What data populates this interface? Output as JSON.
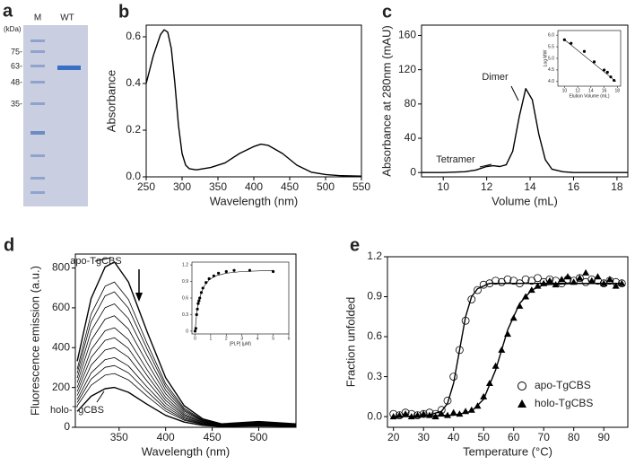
{
  "gel": {
    "panel_label": "a",
    "lanes": [
      "M",
      "WT"
    ],
    "unit": "(kDa)",
    "markers": [
      "75-",
      "63-",
      "48-",
      "35-"
    ]
  },
  "chart_data": [
    {
      "type": "line",
      "panel_label": "b",
      "xlabel": "Wavelength (nm)",
      "ylabel": "Absorbance",
      "x": [
        250,
        260,
        270,
        275,
        280,
        285,
        290,
        295,
        300,
        305,
        310,
        320,
        340,
        360,
        380,
        400,
        410,
        420,
        440,
        460,
        480,
        500,
        520,
        550
      ],
      "series": [
        {
          "color": "#000000",
          "marker": "line",
          "values": [
            0.4,
            0.52,
            0.61,
            0.63,
            0.62,
            0.55,
            0.4,
            0.22,
            0.1,
            0.05,
            0.035,
            0.03,
            0.04,
            0.06,
            0.1,
            0.13,
            0.14,
            0.135,
            0.1,
            0.05,
            0.02,
            0.01,
            0.005,
            0.003
          ]
        }
      ],
      "xlim": [
        250,
        550
      ],
      "ylim": [
        0,
        0.65
      ],
      "xticks": [
        250,
        300,
        350,
        400,
        450,
        500,
        550
      ],
      "yticks": [
        {
          "value": 0,
          "label": "0.0"
        },
        0.2,
        0.4,
        0.6
      ],
      "annotations": []
    },
    {
      "type": "line",
      "panel_label": "c",
      "xlabel": "Volume (mL)",
      "ylabel": "Absorbance at 280nm (mAU)",
      "x": [
        9,
        10,
        11,
        11.5,
        12,
        12.3,
        12.6,
        12.9,
        13.2,
        13.5,
        13.8,
        14.1,
        14.4,
        14.7,
        15,
        15.5,
        16,
        17,
        18.5
      ],
      "series": [
        {
          "color": "#000000",
          "marker": "line",
          "values": [
            0,
            0,
            1,
            3,
            7,
            8,
            7,
            9,
            25,
            65,
            98,
            85,
            45,
            15,
            4,
            1,
            0,
            0,
            0
          ]
        }
      ],
      "xlim": [
        9,
        18.5
      ],
      "ylim": [
        -5,
        172
      ],
      "xticks": [
        10,
        12,
        14,
        16,
        18
      ],
      "yticks": [
        0,
        40,
        80,
        120,
        160
      ],
      "annotations": [
        "Tetramer",
        "Dimer"
      ],
      "inset": {
        "type": "scatter",
        "xlabel": "Elution Volume (mL)",
        "ylabel": "Log MW",
        "x": [
          10,
          11,
          13,
          14.5,
          16,
          16.5,
          17,
          17.5
        ],
        "series": [
          {
            "color": "#000000",
            "marker": "circle",
            "values": [
              5.8,
              5.65,
              5.3,
              4.85,
              4.5,
              4.4,
              4.2,
              4.05
            ]
          },
          {
            "color": "#000000",
            "marker": "line",
            "x": [
              9.8,
              17.8
            ],
            "values": [
              5.85,
              4.0
            ]
          }
        ],
        "xlim": [
          9,
          18.5
        ],
        "ylim": [
          3.8,
          6.2
        ],
        "xticks": [
          10,
          12,
          14,
          16,
          18
        ],
        "yticks": [
          {
            "value": 4,
            "label": "4.0"
          },
          4.5,
          {
            "value": 5,
            "label": "5.0"
          },
          5.5,
          {
            "value": 6,
            "label": "6.0"
          }
        ]
      }
    },
    {
      "type": "line",
      "panel_label": "d",
      "xlabel": "Wavelength (nm)",
      "ylabel": "Fluorescence emission (a.u.)",
      "x": [
        305,
        320,
        335,
        345,
        360,
        380,
        400,
        420,
        440,
        460,
        500,
        540
      ],
      "series": [
        {
          "color": "#000000",
          "marker": "line",
          "values": [
            332,
            647,
            805,
            830,
            730,
            481,
            249,
            108,
            42,
            17,
            29,
            17
          ]
        },
        {
          "color": "#000000",
          "marker": "thin",
          "values": [
            292,
            569,
            708,
            730,
            642,
            423,
            219,
            95,
            37,
            15,
            26,
            15
          ]
        },
        {
          "color": "#000000",
          "marker": "thin",
          "values": [
            272,
            530,
            660,
            680,
            598,
            394,
            204,
            88,
            34,
            14,
            24,
            14
          ]
        },
        {
          "color": "#000000",
          "marker": "thin",
          "values": [
            248,
            484,
            601,
            620,
            546,
            360,
            186,
            81,
            31,
            12,
            22,
            12
          ]
        },
        {
          "color": "#000000",
          "marker": "thin",
          "values": [
            224,
            437,
            543,
            560,
            493,
            325,
            168,
            73,
            28,
            11,
            20,
            11
          ]
        },
        {
          "color": "#000000",
          "marker": "thin",
          "values": [
            200,
            390,
            485,
            500,
            440,
            290,
            150,
            65,
            25,
            10,
            18,
            10
          ]
        },
        {
          "color": "#000000",
          "marker": "thin",
          "values": [
            180,
            351,
            437,
            450,
            396,
            261,
            135,
            59,
            23,
            9,
            16,
            9
          ]
        },
        {
          "color": "#000000",
          "marker": "thin",
          "values": [
            160,
            312,
            388,
            400,
            352,
            232,
            120,
            52,
            20,
            8,
            14,
            8
          ]
        },
        {
          "color": "#000000",
          "marker": "thin",
          "values": [
            140,
            273,
            340,
            350,
            308,
            203,
            105,
            46,
            18,
            7,
            12,
            7
          ]
        },
        {
          "color": "#000000",
          "marker": "thin",
          "values": [
            124,
            242,
            301,
            310,
            273,
            180,
            93,
            40,
            16,
            6,
            11,
            6
          ]
        },
        {
          "color": "#000000",
          "marker": "thin",
          "values": [
            108,
            211,
            262,
            270,
            238,
            157,
            81,
            35,
            14,
            5,
            9,
            5
          ]
        },
        {
          "color": "#000000",
          "marker": "line",
          "values": [
            80,
            156,
            194,
            200,
            176,
            116,
            60,
            26,
            10,
            4,
            7,
            4
          ]
        }
      ],
      "xlim": [
        303,
        540
      ],
      "ylim": [
        0,
        870
      ],
      "xticks": [
        350,
        400,
        450,
        500
      ],
      "yticks": [
        0,
        200,
        400,
        600,
        800
      ],
      "annotations": [
        "apo-TgCBS",
        "holo-TgCBS"
      ],
      "inset": {
        "type": "scatter",
        "xlabel": "[PLP] (μM)",
        "x": [
          0,
          0.05,
          0.1,
          0.15,
          0.2,
          0.25,
          0.3,
          0.4,
          0.5,
          0.7,
          0.9,
          1.2,
          1.5,
          2,
          2.5,
          3.5,
          5
        ],
        "series": [
          {
            "color": "#000000",
            "marker": "circle",
            "values": [
              0,
              0.05,
              0.3,
              0.4,
              0.5,
              0.55,
              0.6,
              0.7,
              0.78,
              0.88,
              0.95,
              1.0,
              1.05,
              1.08,
              1.1,
              1.1,
              1.08
            ]
          },
          {
            "color": "#000000",
            "marker": "line",
            "x": [
              0,
              0.1,
              0.2,
              0.4,
              0.6,
              0.9,
              1.3,
              2,
              3,
              5
            ],
            "values": [
              0,
              0.3,
              0.5,
              0.7,
              0.82,
              0.93,
              1.0,
              1.05,
              1.08,
              1.1
            ]
          }
        ],
        "xlim": [
          -0.2,
          6
        ],
        "ylim": [
          -0.05,
          1.25
        ],
        "xticks": [
          0,
          1,
          2,
          3,
          4,
          5,
          6
        ],
        "yticks": [
          0,
          0.3,
          0.6,
          0.9,
          1.2
        ]
      }
    },
    {
      "type": "scatter",
      "panel_label": "e",
      "xlabel": "Temperature (°C)",
      "ylabel": "Fraction unfolded",
      "x": [
        20,
        22,
        24,
        26,
        28,
        30,
        32,
        34,
        36,
        38,
        40,
        42,
        44,
        46,
        48,
        50,
        52,
        54,
        56,
        58,
        60,
        62,
        64,
        66,
        68,
        70,
        72,
        74,
        76,
        78,
        80,
        82,
        84,
        86,
        88,
        90,
        92,
        94,
        96
      ],
      "series": [
        {
          "name": "apo-TgCBS",
          "color": "#000000",
          "marker": "open-circle",
          "values": [
            0.02,
            0.01,
            0.03,
            0.02,
            0.01,
            0.02,
            0.03,
            0.02,
            0.05,
            0.12,
            0.3,
            0.5,
            0.72,
            0.88,
            0.95,
            0.99,
            1.0,
            1.02,
            1.01,
            1.03,
            1.02,
            1.0,
            1.03,
            1.02,
            1.04,
            1.01,
            1.03,
            1.02,
            1.0,
            1.03,
            1.02,
            1.04,
            1.01,
            1.03,
            1.02,
            1.0,
            1.02,
            1.01,
            1.0
          ]
        },
        {
          "name": "holo-TgCBS",
          "color": "#000000",
          "marker": "triangle",
          "values": [
            0.0,
            0.01,
            0.02,
            0.0,
            0.01,
            0.02,
            0.01,
            0.0,
            0.02,
            0.01,
            0.03,
            0.02,
            0.04,
            0.05,
            0.08,
            0.15,
            0.25,
            0.38,
            0.5,
            0.62,
            0.74,
            0.83,
            0.9,
            0.95,
            0.98,
            1.0,
            1.02,
            0.99,
            1.03,
            1.05,
            1.01,
            1.04,
            1.08,
            1.02,
            1.05,
            1.0,
            1.03,
            0.98,
            1.0
          ]
        },
        {
          "color": "#000000",
          "marker": "line",
          "x": [
            20,
            30,
            36,
            38,
            40,
            42,
            44,
            46,
            48,
            52,
            60,
            70,
            96
          ],
          "values": [
            0,
            0,
            0.04,
            0.1,
            0.25,
            0.5,
            0.75,
            0.9,
            0.96,
            1.0,
            1.0,
            1.0,
            1.0
          ]
        },
        {
          "color": "#000000",
          "marker": "line",
          "x": [
            20,
            40,
            46,
            50,
            54,
            56,
            58,
            62,
            66,
            70,
            80,
            96
          ],
          "values": [
            0,
            0.01,
            0.04,
            0.13,
            0.35,
            0.5,
            0.65,
            0.85,
            0.95,
            0.99,
            1.0,
            1.0
          ]
        }
      ],
      "xlim": [
        18,
        98
      ],
      "ylim": [
        -0.08,
        1.2
      ],
      "xticks": [
        20,
        30,
        40,
        50,
        60,
        70,
        80,
        90
      ],
      "yticks": [
        {
          "value": 0,
          "label": "0.0"
        },
        0.3,
        0.6,
        0.9,
        1.2
      ],
      "legend": "lower right",
      "annotations": []
    }
  ]
}
